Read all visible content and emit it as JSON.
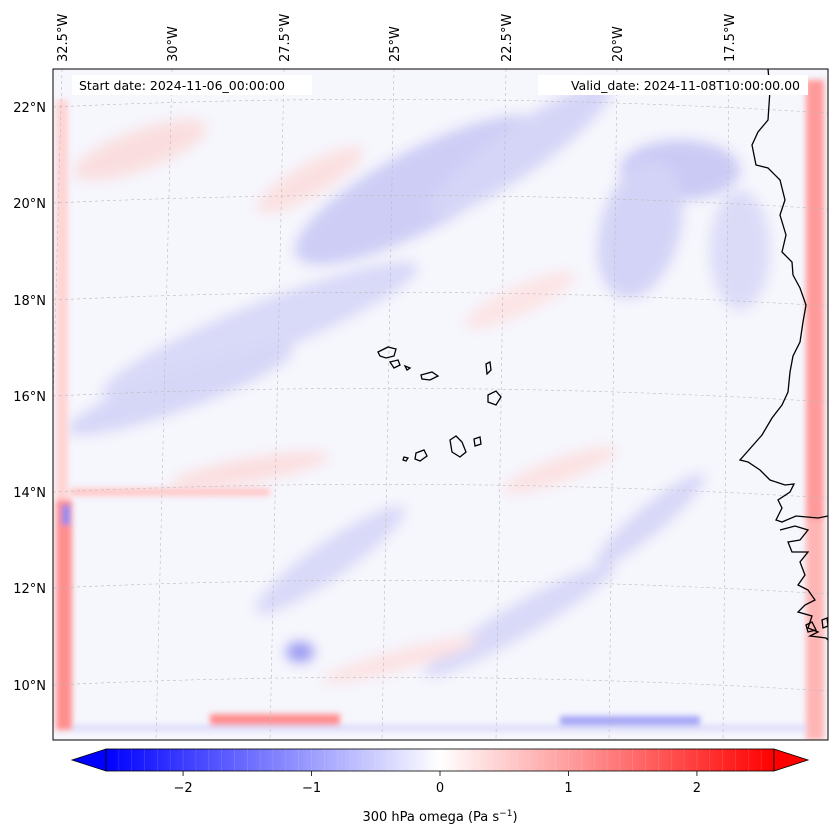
{
  "map": {
    "start_label": "Start date: 2024-11-06_00:00:00",
    "valid_label": "Valid_date: 2024-11-08T10:00:00.00",
    "lon_labels": [
      "32.5°W",
      "30°W",
      "27.5°W",
      "25°W",
      "22.5°W",
      "20°W",
      "17.5°W"
    ],
    "lat_labels": [
      "22°N",
      "20°N",
      "18°N",
      "16°N",
      "14°N",
      "12°N",
      "10°N"
    ]
  },
  "colorbar": {
    "label": "300 hPa omega (Pa s",
    "label_sup": "−1",
    "label_close": ")",
    "ticks": [
      "−2",
      "−1",
      "0",
      "1",
      "2"
    ],
    "min_value": -2.6,
    "max_value": 2.6,
    "cmap": [
      "#0000ff",
      "#ffffff",
      "#ff0000"
    ]
  },
  "colors": {
    "coastline": "#000000",
    "gridline": "#bbbbbb",
    "negative": "#5a5aff",
    "positive": "#ff6060"
  }
}
